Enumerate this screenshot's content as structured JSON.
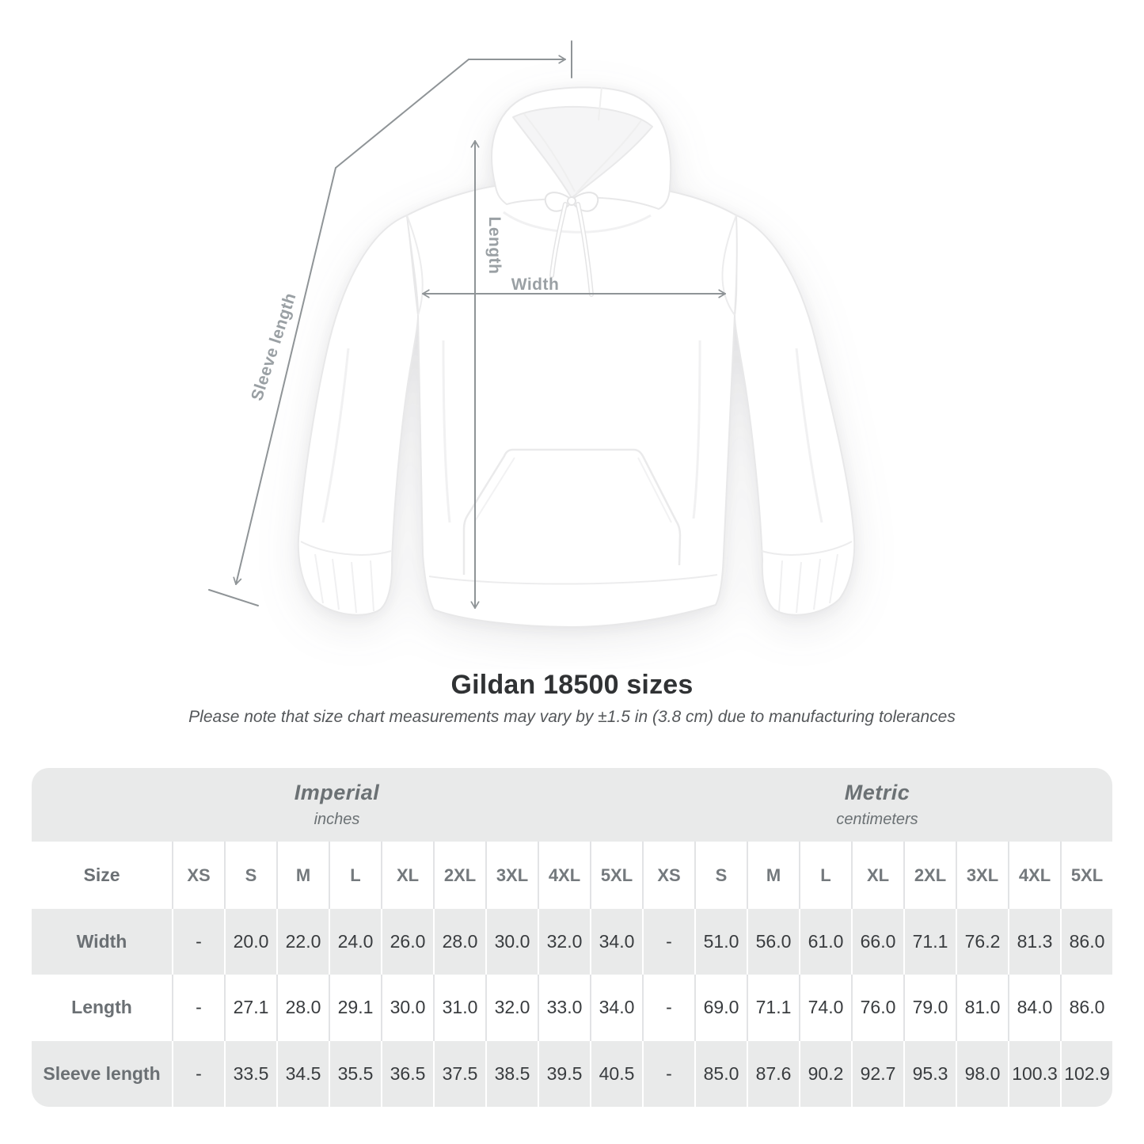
{
  "diagram": {
    "length_label": "Length",
    "width_label": "Width",
    "sleeve_label": "Sleeve length"
  },
  "title": "Gildan 18500 sizes",
  "subtitle": "Please note that size chart measurements may vary by ±1.5 in (3.8 cm) due to manufacturing tolerances",
  "table": {
    "size_label": "Size",
    "unit_groups": [
      {
        "name": "Imperial",
        "unit": "inches"
      },
      {
        "name": "Metric",
        "unit": "centimeters"
      }
    ],
    "sizes": [
      "XS",
      "S",
      "M",
      "L",
      "XL",
      "2XL",
      "3XL",
      "4XL",
      "5XL"
    ],
    "rows": [
      {
        "label": "Width",
        "imperial": [
          "-",
          "20.0",
          "22.0",
          "24.0",
          "26.0",
          "28.0",
          "30.0",
          "32.0",
          "34.0"
        ],
        "metric": [
          "-",
          "51.0",
          "56.0",
          "61.0",
          "66.0",
          "71.1",
          "76.2",
          "81.3",
          "86.0"
        ]
      },
      {
        "label": "Length",
        "imperial": [
          "-",
          "27.1",
          "28.0",
          "29.1",
          "30.0",
          "31.0",
          "32.0",
          "33.0",
          "34.0"
        ],
        "metric": [
          "-",
          "69.0",
          "71.1",
          "74.0",
          "76.0",
          "79.0",
          "81.0",
          "84.0",
          "86.0"
        ]
      },
      {
        "label": "Sleeve length",
        "imperial": [
          "-",
          "33.5",
          "34.5",
          "35.5",
          "36.5",
          "37.5",
          "38.5",
          "39.5",
          "40.5"
        ],
        "metric": [
          "-",
          "85.0",
          "87.6",
          "90.2",
          "92.7",
          "95.3",
          "98.0",
          "100.3",
          "102.9"
        ]
      }
    ]
  },
  "chart_data": {
    "type": "table",
    "title": "Gildan 18500 sizes",
    "column_groups": [
      "Imperial (inches)",
      "Metric (centimeters)"
    ],
    "columns": [
      "Size",
      "XS",
      "S",
      "M",
      "L",
      "XL",
      "2XL",
      "3XL",
      "4XL",
      "5XL"
    ],
    "rows": [
      {
        "label": "Width",
        "imperial": [
          null,
          20.0,
          22.0,
          24.0,
          26.0,
          28.0,
          30.0,
          32.0,
          34.0
        ],
        "metric": [
          null,
          51.0,
          56.0,
          61.0,
          66.0,
          71.1,
          76.2,
          81.3,
          86.0
        ]
      },
      {
        "label": "Length",
        "imperial": [
          null,
          27.1,
          28.0,
          29.1,
          30.0,
          31.0,
          32.0,
          33.0,
          34.0
        ],
        "metric": [
          null,
          69.0,
          71.1,
          74.0,
          76.0,
          79.0,
          81.0,
          84.0,
          86.0
        ]
      },
      {
        "label": "Sleeve length",
        "imperial": [
          null,
          33.5,
          34.5,
          35.5,
          36.5,
          37.5,
          38.5,
          39.5,
          40.5
        ],
        "metric": [
          null,
          85.0,
          87.6,
          90.2,
          92.7,
          95.3,
          98.0,
          100.3,
          102.9
        ]
      }
    ]
  },
  "colors": {
    "table_band_gray": "#e9eaea",
    "separator_gray": "#e2e3e5",
    "header_text_gray": "#6b7174",
    "value_text": "#393c3f",
    "measure_line_gray": "#8f9497",
    "measure_label_gray": "#9aa0a4",
    "title_text": "#303234"
  }
}
